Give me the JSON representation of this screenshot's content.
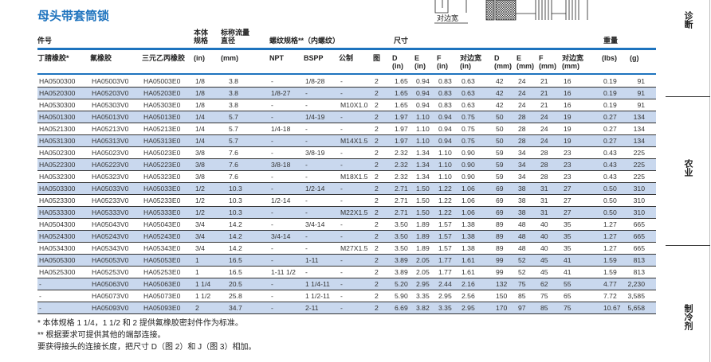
{
  "title": "母头带套筒锁",
  "diagram": {
    "label": "对边宽"
  },
  "header": {
    "part_no": "件号",
    "body_size": [
      "本体",
      "规格"
    ],
    "flow_dia": [
      "标称流量",
      "直径"
    ],
    "thread": "螺纹规格**（内螺纹）",
    "dimensions": "尺寸",
    "weight": "重量",
    "columns": [
      "丁腈橡胶*",
      "氟橡胶",
      "三元乙丙橡胶",
      "(in)",
      "(mm)",
      "NPT",
      "BSPP",
      "公制",
      "图",
      "D\n(in)",
      "E\n(in)",
      "F\n(in)",
      "对边宽\n(in)",
      "D\n(mm)",
      "E\n(mm)",
      "F\n(mm)",
      "对边宽\n(mm)",
      "(lbs)",
      "(g)"
    ]
  },
  "rows": [
    [
      "HA0500300",
      "HA05003V0",
      "HA05003E0",
      "1/8",
      "3.8",
      "-",
      "1/8-28",
      "-",
      "2",
      "1.65",
      "0.94",
      "0.83",
      "0.63",
      "42",
      "24",
      "21",
      "16",
      "0.19",
      "91"
    ],
    [
      "HA0520300",
      "HA05203V0",
      "HA05203E0",
      "1/8",
      "3.8",
      "1/8-27",
      "-",
      "-",
      "2",
      "1.65",
      "0.94",
      "0.83",
      "0.63",
      "42",
      "24",
      "21",
      "16",
      "0.19",
      "91"
    ],
    [
      "HA0530300",
      "HA05303V0",
      "HA05303E0",
      "1/8",
      "3.8",
      "-",
      "-",
      "M10X1.0",
      "2",
      "1.65",
      "0.94",
      "0.83",
      "0.63",
      "42",
      "24",
      "21",
      "16",
      "0.19",
      "91"
    ],
    [
      "HA0501300",
      "HA05013V0",
      "HA05013E0",
      "1/4",
      "5.7",
      "-",
      "1/4-19",
      "-",
      "2",
      "1.97",
      "1.10",
      "0.94",
      "0.75",
      "50",
      "28",
      "24",
      "19",
      "0.27",
      "134"
    ],
    [
      "HA0521300",
      "HA05213V0",
      "HA05213E0",
      "1/4",
      "5.7",
      "1/4-18",
      "-",
      "-",
      "2",
      "1.97",
      "1.10",
      "0.94",
      "0.75",
      "50",
      "28",
      "24",
      "19",
      "0.27",
      "134"
    ],
    [
      "HA0531300",
      "HA05313V0",
      "HA05313E0",
      "1/4",
      "5.7",
      "-",
      "-",
      "M14X1.5",
      "2",
      "1.97",
      "1.10",
      "0.94",
      "0.75",
      "50",
      "28",
      "24",
      "19",
      "0.27",
      "134"
    ],
    [
      "HA0502300",
      "HA05023V0",
      "HA05023E0",
      "3/8",
      "7.6",
      "-",
      "3/8-19",
      "-",
      "2",
      "2.32",
      "1.34",
      "1.10",
      "0.90",
      "59",
      "34",
      "28",
      "23",
      "0.43",
      "225"
    ],
    [
      "HA0522300",
      "HA05223V0",
      "HA05223E0",
      "3/8",
      "7.6",
      "3/8-18",
      "-",
      "-",
      "2",
      "2.32",
      "1.34",
      "1.10",
      "0.90",
      "59",
      "34",
      "28",
      "23",
      "0.43",
      "225"
    ],
    [
      "HA0532300",
      "HA05323V0",
      "HA05323E0",
      "3/8",
      "7.6",
      "-",
      "-",
      "M18X1.5",
      "2",
      "2.32",
      "1.34",
      "1.10",
      "0.90",
      "59",
      "34",
      "28",
      "23",
      "0.43",
      "225"
    ],
    [
      "HA0503300",
      "HA05033V0",
      "HA05033E0",
      "1/2",
      "10.3",
      "-",
      "1/2-14",
      "-",
      "2",
      "2.71",
      "1.50",
      "1.22",
      "1.06",
      "69",
      "38",
      "31",
      "27",
      "0.50",
      "310"
    ],
    [
      "HA0523300",
      "HA05233V0",
      "HA05233E0",
      "1/2",
      "10.3",
      "1/2-14",
      "-",
      "-",
      "2",
      "2.71",
      "1.50",
      "1.22",
      "1.06",
      "69",
      "38",
      "31",
      "27",
      "0.50",
      "310"
    ],
    [
      "HA0533300",
      "HA05333V0",
      "HA05333E0",
      "1/2",
      "10.3",
      "-",
      "-",
      "M22X1.5",
      "2",
      "2.71",
      "1.50",
      "1.22",
      "1.06",
      "69",
      "38",
      "31",
      "27",
      "0.50",
      "310"
    ],
    [
      "HA0504300",
      "HA05043V0",
      "HA05043E0",
      "3/4",
      "14.2",
      "-",
      "3/4-14",
      "-",
      "2",
      "3.50",
      "1.89",
      "1.57",
      "1.38",
      "89",
      "48",
      "40",
      "35",
      "1.27",
      "665"
    ],
    [
      "HA0524300",
      "HA05243V0",
      "HA05243E0",
      "3/4",
      "14.2",
      "3/4-14",
      "-",
      "-",
      "2",
      "3.50",
      "1.89",
      "1.57",
      "1.38",
      "89",
      "48",
      "40",
      "35",
      "1.27",
      "665"
    ],
    [
      "HA0534300",
      "HA05343V0",
      "HA05343E0",
      "3/4",
      "14.2",
      "-",
      "-",
      "M27X1.5",
      "2",
      "3.50",
      "1.89",
      "1.57",
      "1.38",
      "89",
      "48",
      "40",
      "35",
      "1.27",
      "665"
    ],
    [
      "HA0505300",
      "HA05053V0",
      "HA05053E0",
      "1",
      "16.5",
      "-",
      "1-11",
      "-",
      "2",
      "3.89",
      "2.05",
      "1.77",
      "1.61",
      "99",
      "52",
      "45",
      "41",
      "1.59",
      "813"
    ],
    [
      "HA0525300",
      "HA05253V0",
      "HA05253E0",
      "1",
      "16.5",
      "1-11 1/2",
      "-",
      "-",
      "2",
      "3.89",
      "2.05",
      "1.77",
      "1.61",
      "99",
      "52",
      "45",
      "41",
      "1.59",
      "813"
    ],
    [
      "-",
      "HA05063V0",
      "HA05063E0",
      "1 1/4",
      "20.5",
      "-",
      "1 1/4-11",
      "-",
      "2",
      "5.20",
      "2.95",
      "2.44",
      "2.16",
      "132",
      "75",
      "62",
      "55",
      "4.77",
      "2,230"
    ],
    [
      "-",
      "HA05073V0",
      "HA05073E0",
      "1 1/2",
      "25.8",
      "-",
      "1 1/2-11",
      "-",
      "2",
      "5.90",
      "3.35",
      "2.95",
      "2.56",
      "150",
      "85",
      "75",
      "65",
      "7.72",
      "3,585"
    ],
    [
      "-",
      "HA05093V0",
      "HA05093E0",
      "2",
      "34.7",
      "-",
      "2-11",
      "-",
      "2",
      "6.69",
      "3.82",
      "3.35",
      "2.95",
      "170",
      "97",
      "85",
      "75",
      "10.67",
      "5,658"
    ]
  ],
  "notes": [
    "* 本体规格 1 1/4，1 1/2 和 2 提供氟橡胶密封件作为标准。",
    "** 根据要求可提供其他的端部连接。",
    "要获得接头的连接长度，把尺寸 D（图 2）和 J（图 3）相加。"
  ],
  "side_tabs": [
    "诊断",
    "农业",
    "制冷剂"
  ],
  "colors": {
    "accent": "#1e73be",
    "row_alt": "#c9d8ee"
  }
}
